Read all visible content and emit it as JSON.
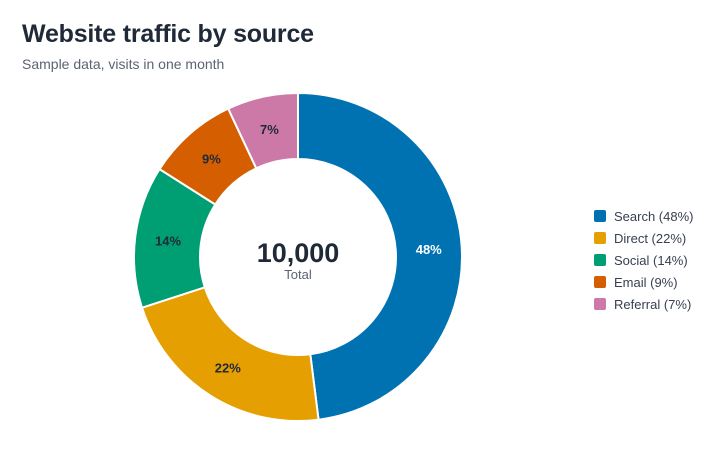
{
  "header": {
    "title": "Website traffic by source",
    "subtitle": "Sample data, visits in one month"
  },
  "chart_data": {
    "type": "pie",
    "donut": true,
    "title": "Website traffic by source",
    "subtitle": "Sample data, visits in one month",
    "center_value": "10,000",
    "center_label": "Total",
    "legend_position": "right",
    "categories": [
      "Search",
      "Direct",
      "Social",
      "Email",
      "Referral"
    ],
    "values": [
      48,
      22,
      14,
      9,
      7
    ],
    "slice_labels": [
      "48%",
      "22%",
      "14%",
      "9%",
      "7%"
    ],
    "legend_labels": [
      "Search (48%)",
      "Direct (22%)",
      "Social (14%)",
      "Email (9%)",
      "Referral (7%)"
    ],
    "colors": [
      "#0072b2",
      "#e69f00",
      "#009e73",
      "#d55e00",
      "#cc79a7"
    ],
    "label_colors": [
      "#ffffff",
      "#1f2937",
      "#1f2937",
      "#1f2937",
      "#1f2937"
    ]
  }
}
